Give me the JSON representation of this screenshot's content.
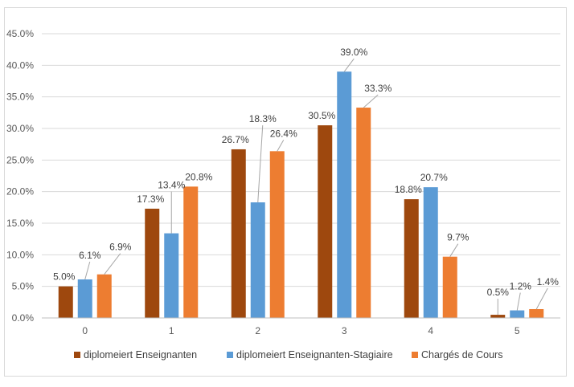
{
  "chart_data": {
    "type": "bar",
    "title": "",
    "xlabel": "",
    "ylabel": "",
    "categories": [
      "0",
      "1",
      "2",
      "3",
      "4",
      "5"
    ],
    "ylim": [
      0,
      45
    ],
    "yticks": [
      "0.0%",
      "5.0%",
      "10.0%",
      "15.0%",
      "20.0%",
      "25.0%",
      "30.0%",
      "35.0%",
      "40.0%",
      "45.0%"
    ],
    "grid": true,
    "legend_position": "bottom",
    "series": [
      {
        "name": "diplomeiert Enseignanten",
        "color": "#9e480e",
        "values": [
          5.0,
          17.3,
          26.7,
          30.5,
          18.8,
          0.5
        ],
        "labels": [
          "5.0%",
          "17.3%",
          "26.7%",
          "30.5%",
          "18.8%",
          "0.5%"
        ]
      },
      {
        "name": "diplomeiert Enseignanten-Stagiaire",
        "color": "#5b9bd5",
        "values": [
          6.1,
          13.4,
          18.3,
          39.0,
          20.7,
          1.2
        ],
        "labels": [
          "6.1%",
          "13.4%",
          "18.3%",
          "39.0%",
          "20.7%",
          "1.2%"
        ]
      },
      {
        "name": "Chargés de Cours",
        "color": "#ed7d31",
        "values": [
          6.9,
          20.8,
          26.4,
          33.3,
          9.7,
          1.4
        ],
        "labels": [
          "6.9%",
          "20.8%",
          "26.4%",
          "33.3%",
          "9.7%",
          "1.4%"
        ]
      }
    ]
  }
}
